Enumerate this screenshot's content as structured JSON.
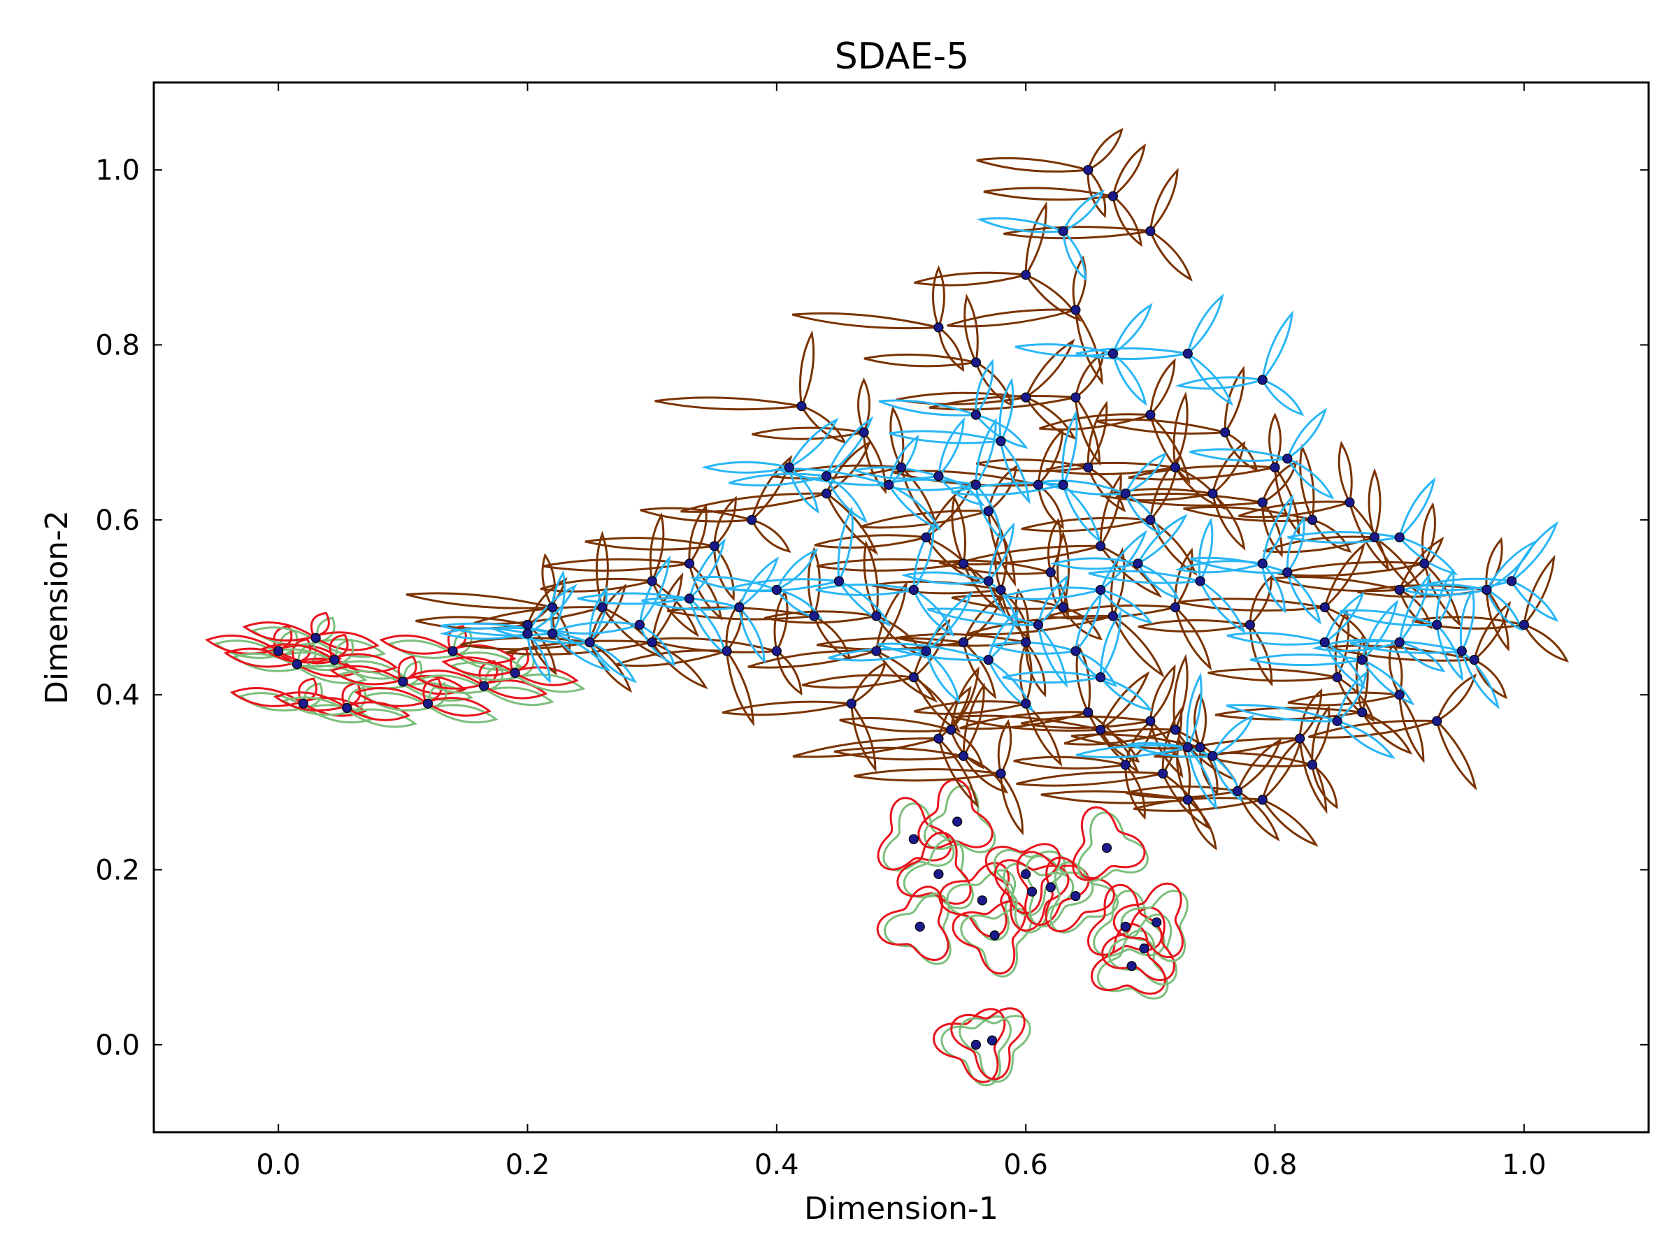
{
  "chart_data": {
    "type": "scatter",
    "title": "SDAE-5",
    "xlabel": "Dimension-1",
    "ylabel": "Dimension-2",
    "xlim": [
      -0.1,
      1.1
    ],
    "ylim": [
      -0.1,
      1.1
    ],
    "xticks": [
      "0.0",
      "0.2",
      "0.4",
      "0.6",
      "0.8",
      "1.0"
    ],
    "yticks": [
      "0.0",
      "0.2",
      "0.4",
      "0.6",
      "0.8",
      "1.0"
    ],
    "grid": false,
    "legend": "none",
    "colors": {
      "points": "#1a1a8c",
      "brown_glyph": "#7a3300",
      "blue_glyph": "#29b6f6",
      "red_glyph": "#e8141c",
      "green_glyph": "#7cbf7c"
    },
    "series": [
      {
        "glyph": "red-green triangles",
        "points": [
          [
            0.0,
            0.45
          ],
          [
            0.015,
            0.435
          ],
          [
            0.03,
            0.465
          ],
          [
            0.045,
            0.44
          ],
          [
            0.02,
            0.39
          ],
          [
            0.055,
            0.385
          ],
          [
            0.1,
            0.415
          ],
          [
            0.12,
            0.39
          ],
          [
            0.14,
            0.45
          ],
          [
            0.165,
            0.41
          ],
          [
            0.19,
            0.425
          ],
          [
            0.51,
            0.235
          ],
          [
            0.545,
            0.255
          ],
          [
            0.53,
            0.195
          ],
          [
            0.515,
            0.135
          ],
          [
            0.565,
            0.165
          ],
          [
            0.575,
            0.125
          ],
          [
            0.6,
            0.195
          ],
          [
            0.605,
            0.175
          ],
          [
            0.62,
            0.18
          ],
          [
            0.64,
            0.17
          ],
          [
            0.665,
            0.225
          ],
          [
            0.68,
            0.135
          ],
          [
            0.685,
            0.09
          ],
          [
            0.695,
            0.11
          ],
          [
            0.705,
            0.14
          ],
          [
            0.56,
            0.0
          ],
          [
            0.573,
            0.005
          ]
        ]
      },
      {
        "glyph": "brown propellers",
        "points": [
          [
            0.65,
            1.0
          ],
          [
            0.67,
            0.97
          ],
          [
            0.7,
            0.93
          ],
          [
            0.6,
            0.88
          ],
          [
            0.64,
            0.84
          ],
          [
            0.53,
            0.82
          ],
          [
            0.56,
            0.78
          ],
          [
            0.6,
            0.74
          ],
          [
            0.64,
            0.74
          ],
          [
            0.7,
            0.72
          ],
          [
            0.76,
            0.7
          ],
          [
            0.42,
            0.73
          ],
          [
            0.47,
            0.7
          ],
          [
            0.5,
            0.66
          ],
          [
            0.44,
            0.63
          ],
          [
            0.38,
            0.6
          ],
          [
            0.35,
            0.57
          ],
          [
            0.33,
            0.55
          ],
          [
            0.3,
            0.53
          ],
          [
            0.26,
            0.5
          ],
          [
            0.22,
            0.5
          ],
          [
            0.2,
            0.48
          ],
          [
            0.25,
            0.46
          ],
          [
            0.3,
            0.46
          ],
          [
            0.36,
            0.45
          ],
          [
            0.4,
            0.45
          ],
          [
            0.43,
            0.49
          ],
          [
            0.48,
            0.49
          ],
          [
            0.46,
            0.39
          ],
          [
            0.53,
            0.35
          ],
          [
            0.54,
            0.36
          ],
          [
            0.55,
            0.33
          ],
          [
            0.58,
            0.31
          ],
          [
            0.6,
            0.39
          ],
          [
            0.65,
            0.38
          ],
          [
            0.66,
            0.36
          ],
          [
            0.68,
            0.32
          ],
          [
            0.7,
            0.37
          ],
          [
            0.71,
            0.31
          ],
          [
            0.72,
            0.36
          ],
          [
            0.74,
            0.34
          ],
          [
            0.73,
            0.28
          ],
          [
            0.77,
            0.29
          ],
          [
            0.79,
            0.28
          ],
          [
            0.82,
            0.35
          ],
          [
            0.83,
            0.32
          ],
          [
            0.85,
            0.42
          ],
          [
            0.87,
            0.38
          ],
          [
            0.9,
            0.4
          ],
          [
            0.93,
            0.37
          ],
          [
            0.96,
            0.44
          ],
          [
            1.0,
            0.48
          ],
          [
            0.97,
            0.52
          ],
          [
            0.92,
            0.55
          ],
          [
            0.88,
            0.58
          ],
          [
            0.83,
            0.6
          ],
          [
            0.79,
            0.62
          ],
          [
            0.75,
            0.63
          ],
          [
            0.7,
            0.6
          ],
          [
            0.66,
            0.57
          ],
          [
            0.62,
            0.54
          ],
          [
            0.58,
            0.52
          ],
          [
            0.55,
            0.55
          ],
          [
            0.52,
            0.58
          ],
          [
            0.57,
            0.61
          ],
          [
            0.61,
            0.64
          ],
          [
            0.65,
            0.66
          ],
          [
            0.72,
            0.66
          ],
          [
            0.8,
            0.66
          ],
          [
            0.86,
            0.62
          ],
          [
            0.9,
            0.52
          ],
          [
            0.84,
            0.5
          ],
          [
            0.78,
            0.48
          ],
          [
            0.72,
            0.5
          ],
          [
            0.67,
            0.49
          ],
          [
            0.63,
            0.5
          ],
          [
            0.6,
            0.46
          ],
          [
            0.55,
            0.46
          ],
          [
            0.51,
            0.42
          ],
          [
            0.48,
            0.45
          ]
        ]
      },
      {
        "glyph": "blue propellers",
        "points": [
          [
            0.63,
            0.93
          ],
          [
            0.67,
            0.79
          ],
          [
            0.73,
            0.79
          ],
          [
            0.79,
            0.76
          ],
          [
            0.56,
            0.72
          ],
          [
            0.58,
            0.69
          ],
          [
            0.41,
            0.66
          ],
          [
            0.44,
            0.65
          ],
          [
            0.49,
            0.64
          ],
          [
            0.53,
            0.65
          ],
          [
            0.56,
            0.64
          ],
          [
            0.63,
            0.64
          ],
          [
            0.68,
            0.63
          ],
          [
            0.81,
            0.67
          ],
          [
            0.9,
            0.58
          ],
          [
            0.79,
            0.55
          ],
          [
            0.81,
            0.54
          ],
          [
            0.74,
            0.53
          ],
          [
            0.69,
            0.55
          ],
          [
            0.66,
            0.52
          ],
          [
            0.61,
            0.48
          ],
          [
            0.57,
            0.53
          ],
          [
            0.51,
            0.52
          ],
          [
            0.45,
            0.53
          ],
          [
            0.4,
            0.52
          ],
          [
            0.37,
            0.5
          ],
          [
            0.33,
            0.51
          ],
          [
            0.29,
            0.48
          ],
          [
            0.25,
            0.46
          ],
          [
            0.22,
            0.47
          ],
          [
            0.2,
            0.47
          ],
          [
            0.52,
            0.45
          ],
          [
            0.57,
            0.44
          ],
          [
            0.64,
            0.45
          ],
          [
            0.66,
            0.42
          ],
          [
            0.73,
            0.34
          ],
          [
            0.75,
            0.33
          ],
          [
            0.84,
            0.46
          ],
          [
            0.87,
            0.44
          ],
          [
            0.9,
            0.46
          ],
          [
            0.93,
            0.48
          ],
          [
            0.95,
            0.45
          ],
          [
            0.97,
            0.52
          ],
          [
            0.99,
            0.53
          ],
          [
            0.85,
            0.37
          ]
        ]
      }
    ]
  }
}
